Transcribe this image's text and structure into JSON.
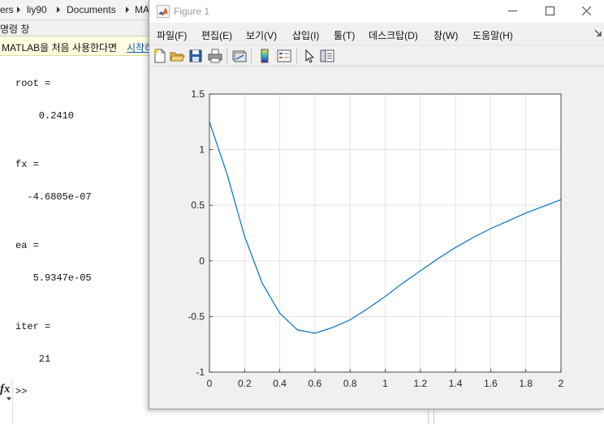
{
  "breadcrumb": {
    "items": [
      "ers",
      "liy90",
      "Documents",
      "MA"
    ]
  },
  "command_window": {
    "title": "명령 창",
    "info_text": "MATLAB을 처음 사용한다면",
    "info_link": "시작하",
    "lines": [
      {
        "text": "root ="
      },
      {
        "text": "    0.2410"
      },
      {
        "text": "fx ="
      },
      {
        "text": "  -4.6805e-07"
      },
      {
        "text": "ea ="
      },
      {
        "text": "   5.9347e-05"
      },
      {
        "text": "iter ="
      },
      {
        "text": "    21"
      }
    ],
    "fx_label": "fx",
    "prompt": ">>"
  },
  "figure": {
    "title": "Figure 1",
    "menu": [
      "파일(F)",
      "편집(E)",
      "보기(V)",
      "삽입(I)",
      "툴(T)",
      "데스크탑(D)",
      "창(W)",
      "도움말(H)"
    ],
    "toolbar_icons": [
      "new-figure-icon",
      "open-file-icon",
      "save-icon",
      "print-icon",
      "link-plot-icon",
      "colorbar-icon",
      "legend-icon",
      "pointer-icon",
      "property-inspector-icon"
    ]
  },
  "chart_data": {
    "type": "line",
    "xlim": [
      0,
      2
    ],
    "ylim": [
      -1,
      1.5
    ],
    "x_ticks": [
      "0",
      "0.2",
      "0.4",
      "0.6",
      "0.8",
      "1",
      "1.2",
      "1.4",
      "1.6",
      "1.8",
      "2"
    ],
    "y_ticks": [
      "1.5",
      "1",
      "0.5",
      "0",
      "-0.5",
      "-1"
    ],
    "grid": true,
    "line_color": "#0072bd",
    "series": [
      {
        "x": [
          0,
          0.1,
          0.2,
          0.3,
          0.4,
          0.5,
          0.6,
          0.7,
          0.8,
          0.9,
          1.0,
          1.1,
          1.2,
          1.3,
          1.4,
          1.5,
          1.6,
          1.7,
          1.8,
          1.9,
          2.0
        ],
        "y": [
          1.25,
          0.78,
          0.22,
          -0.2,
          -0.47,
          -0.62,
          -0.65,
          -0.6,
          -0.53,
          -0.43,
          -0.32,
          -0.2,
          -0.09,
          0.02,
          0.12,
          0.21,
          0.29,
          0.36,
          0.43,
          0.49,
          0.55
        ]
      }
    ]
  }
}
